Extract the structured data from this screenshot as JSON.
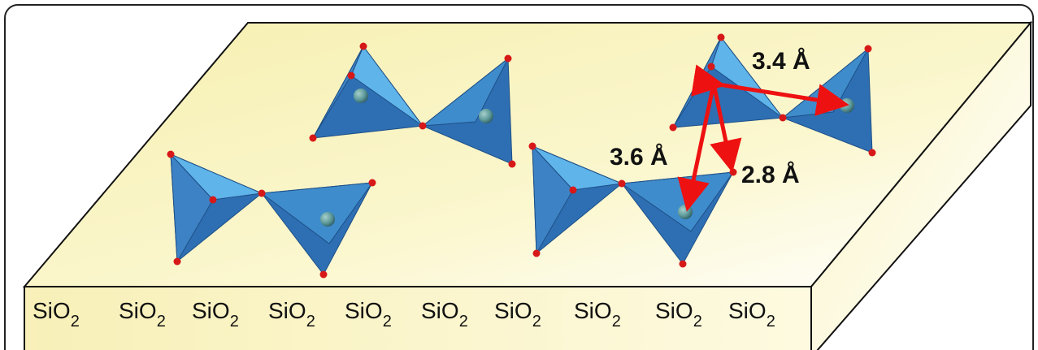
{
  "labels": {
    "distances": [
      "3.4 Å",
      "3.6 Å",
      "2.8 Å"
    ]
  },
  "substrate": {
    "formula_main": "SiO",
    "formula_sub": "2",
    "repeat_count": 10
  },
  "colors": {
    "substrate_top": "#f9f3b8",
    "substrate_front": "#fbf6c8",
    "tetra_dark": "#2e6fb3",
    "tetra_light": "#5fb4ea",
    "oxygen": "#d71818",
    "metal": "#5e9a9a",
    "arrow": "#ee1111"
  }
}
